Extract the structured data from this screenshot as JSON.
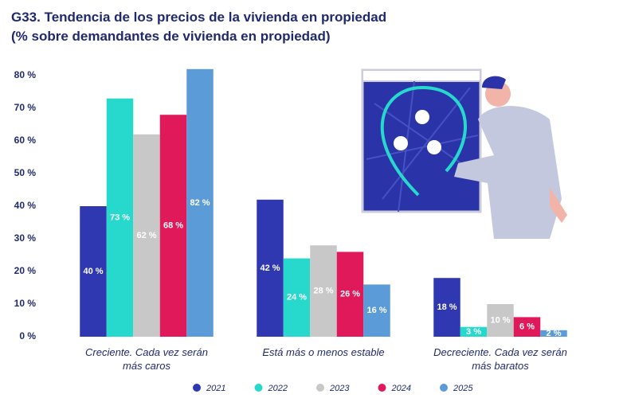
{
  "chart_data": {
    "type": "bar",
    "title": "G33. Tendencia de los precios de la vivienda en propiedad",
    "subtitle": "(% sobre demandantes de vivienda en propiedad)",
    "categories": [
      "Creciente. Cada vez serán más caros",
      "Está más o menos estable",
      "Decreciente. Cada vez serán más baratos"
    ],
    "series": [
      {
        "name": "2021",
        "color": "#2f38b0",
        "values": [
          40,
          42,
          18
        ],
        "value_labels": [
          "40 %",
          "42 %",
          "18 %"
        ]
      },
      {
        "name": "2022",
        "color": "#27d9cc",
        "values": [
          73,
          24,
          3
        ],
        "value_labels": [
          "73 %",
          "24 %",
          "3 %"
        ]
      },
      {
        "name": "2023",
        "color": "#c8c8c8",
        "values": [
          62,
          28,
          10
        ],
        "value_labels": [
          "62 %",
          "28 %",
          "10 %"
        ]
      },
      {
        "name": "2024",
        "color": "#e0195a",
        "values": [
          68,
          26,
          6
        ],
        "value_labels": [
          "68 %",
          "26 %",
          "6 %"
        ]
      },
      {
        "name": "2025",
        "color": "#5b9bd8",
        "values": [
          82,
          16,
          2
        ],
        "value_labels": [
          "82 %",
          "16 %",
          "2 %"
        ]
      }
    ],
    "ylim": [
      0,
      85
    ],
    "yticks": [
      {
        "value": 0,
        "label": "0 %"
      },
      {
        "value": 10,
        "label": "10 %"
      },
      {
        "value": 20,
        "label": "20 %"
      },
      {
        "value": 30,
        "label": "30 %"
      },
      {
        "value": 40,
        "label": "40 %"
      },
      {
        "value": 50,
        "label": "50 %"
      },
      {
        "value": 60,
        "label": "60 %"
      },
      {
        "value": 70,
        "label": "70 %"
      },
      {
        "value": 80,
        "label": "80 %"
      }
    ],
    "grid": false
  }
}
